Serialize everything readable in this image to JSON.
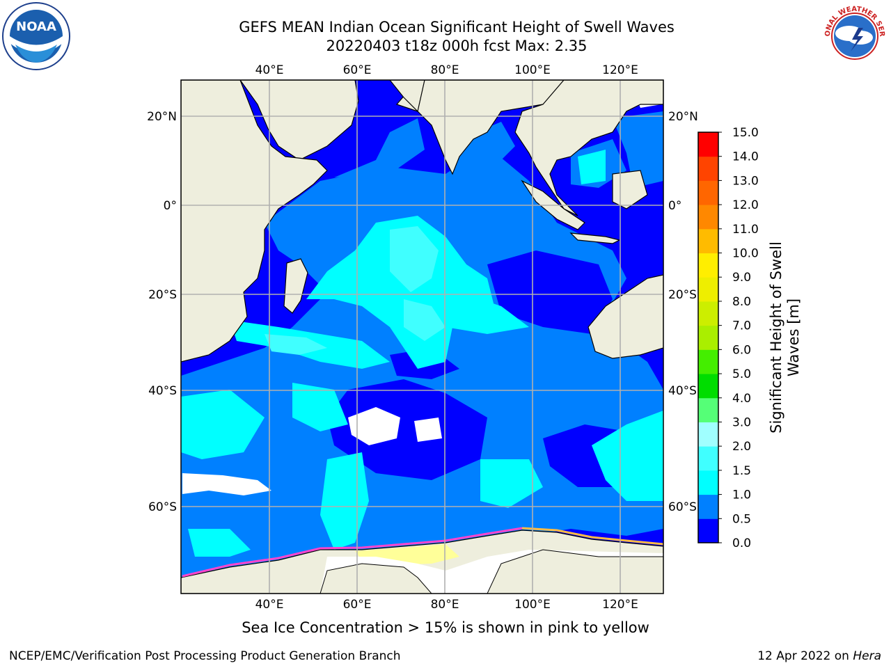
{
  "header": {
    "title_line1": "GEFS MEAN Indian Ocean Significant Height of Swell Waves",
    "title_line2": "20220403 t18z 000h fcst   Max: 2.35"
  },
  "logos": {
    "left": "NOAA",
    "right": "NATIONAL WEATHER SERVICE"
  },
  "map": {
    "lon_labels": [
      "40°E",
      "60°E",
      "80°E",
      "100°E",
      "120°E"
    ],
    "lat_labels_left": [
      "20°N",
      "0°",
      "20°S",
      "40°S",
      "60°S"
    ],
    "lat_labels_right": [
      "20°N",
      "0°",
      "20°S",
      "40°S",
      "60°S"
    ],
    "grid": true,
    "land_color": "#eeeedd",
    "ocean_dark": "#0000ff",
    "ocean_mid": "#0080ff",
    "ocean_light": "#00ffff",
    "ice_colors": [
      "#ff44cc",
      "#ffbb44",
      "#ffff99"
    ]
  },
  "colorbar": {
    "title_line1": "Significant Height of Swell",
    "title_line2": "Waves [m]",
    "ticks": [
      "0.0",
      "0.5",
      "1.0",
      "1.5",
      "2.0",
      "3.0",
      "4.0",
      "5.0",
      "6.0",
      "7.0",
      "8.0",
      "9.0",
      "10.0",
      "11.0",
      "12.0",
      "13.0",
      "14.0",
      "15.0"
    ],
    "colors": [
      "#0000ff",
      "#0080ff",
      "#00ffff",
      "#40ffff",
      "#a0ffff",
      "#55ff77",
      "#00dd00",
      "#44ee00",
      "#aaee00",
      "#ccee00",
      "#eeee00",
      "#ffee00",
      "#ffbb00",
      "#ff8800",
      "#ff6600",
      "#ff4400",
      "#ff0000"
    ]
  },
  "caption": "Sea Ice Concentration > 15% is shown in pink to yellow",
  "footer": {
    "left": "NCEP/EMC/Verification Post Processing Product Generation Branch",
    "right_date": "12 Apr 2022 on ",
    "right_host": "Hera"
  }
}
